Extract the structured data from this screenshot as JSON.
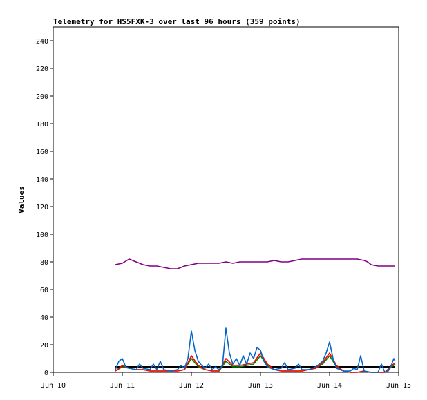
{
  "chart_data": {
    "type": "line",
    "title": "Telemetry for HS5FXK-3 over last 96 hours (359 points)",
    "xlabel": "",
    "ylabel": "Values",
    "xlim": [
      "Jun 10",
      "Jun 15"
    ],
    "ylim": [
      0,
      250
    ],
    "x_ticks": [
      "Jun 10",
      "Jun 11",
      "Jun 12",
      "Jun 13",
      "Jun 14",
      "Jun 15"
    ],
    "y_ticks": [
      0,
      20,
      40,
      60,
      80,
      100,
      120,
      140,
      160,
      180,
      200,
      220,
      240
    ],
    "grid": false,
    "legend": "none",
    "x_units": "days since Jun 10",
    "series": [
      {
        "color": "#800080",
        "points": [
          [
            0.9,
            78
          ],
          [
            1.0,
            79
          ],
          [
            1.1,
            82
          ],
          [
            1.2,
            80
          ],
          [
            1.3,
            78
          ],
          [
            1.4,
            77
          ],
          [
            1.5,
            77
          ],
          [
            1.6,
            76
          ],
          [
            1.7,
            75
          ],
          [
            1.8,
            75
          ],
          [
            1.9,
            77
          ],
          [
            2.0,
            78
          ],
          [
            2.1,
            79
          ],
          [
            2.2,
            79
          ],
          [
            2.3,
            79
          ],
          [
            2.4,
            79
          ],
          [
            2.5,
            80
          ],
          [
            2.6,
            79
          ],
          [
            2.7,
            80
          ],
          [
            2.8,
            80
          ],
          [
            2.9,
            80
          ],
          [
            3.0,
            80
          ],
          [
            3.1,
            80
          ],
          [
            3.2,
            81
          ],
          [
            3.3,
            80
          ],
          [
            3.4,
            80
          ],
          [
            3.5,
            81
          ],
          [
            3.6,
            82
          ],
          [
            3.7,
            82
          ],
          [
            3.8,
            82
          ],
          [
            3.9,
            82
          ],
          [
            4.0,
            82
          ],
          [
            4.1,
            82
          ],
          [
            4.2,
            82
          ],
          [
            4.3,
            82
          ],
          [
            4.4,
            82
          ],
          [
            4.5,
            81
          ],
          [
            4.55,
            80
          ],
          [
            4.6,
            78
          ],
          [
            4.7,
            77
          ],
          [
            4.8,
            77
          ],
          [
            4.9,
            77
          ],
          [
            4.95,
            77
          ]
        ]
      },
      {
        "color": "#000000",
        "points": [
          [
            0.9,
            4
          ],
          [
            4.95,
            4
          ]
        ]
      },
      {
        "color": "#008000",
        "points": [
          [
            0.9,
            1
          ],
          [
            1.0,
            4
          ],
          [
            1.1,
            3
          ],
          [
            1.2,
            2
          ],
          [
            1.3,
            2
          ],
          [
            1.4,
            1
          ],
          [
            1.5,
            1
          ],
          [
            1.6,
            1
          ],
          [
            1.7,
            1
          ],
          [
            1.8,
            1
          ],
          [
            1.9,
            2
          ],
          [
            2.0,
            10
          ],
          [
            2.1,
            4
          ],
          [
            2.2,
            2
          ],
          [
            2.3,
            1
          ],
          [
            2.4,
            1
          ],
          [
            2.5,
            8
          ],
          [
            2.6,
            4
          ],
          [
            2.7,
            4
          ],
          [
            2.8,
            5
          ],
          [
            2.9,
            6
          ],
          [
            3.0,
            12
          ],
          [
            3.1,
            5
          ],
          [
            3.2,
            2
          ],
          [
            3.3,
            1
          ],
          [
            3.4,
            1
          ],
          [
            3.5,
            1
          ],
          [
            3.6,
            1
          ],
          [
            3.7,
            2
          ],
          [
            3.8,
            3
          ],
          [
            3.9,
            6
          ],
          [
            4.0,
            12
          ],
          [
            4.1,
            4
          ],
          [
            4.2,
            1
          ],
          [
            4.3,
            0
          ],
          [
            4.4,
            0
          ],
          [
            4.5,
            1
          ],
          [
            4.6,
            0
          ],
          [
            4.7,
            0
          ],
          [
            4.8,
            0
          ],
          [
            4.9,
            4
          ],
          [
            4.95,
            6
          ]
        ]
      },
      {
        "color": "#ff0000",
        "points": [
          [
            0.9,
            1
          ],
          [
            1.0,
            5
          ],
          [
            1.1,
            3
          ],
          [
            1.2,
            2
          ],
          [
            1.3,
            2
          ],
          [
            1.4,
            1
          ],
          [
            1.5,
            1
          ],
          [
            1.6,
            1
          ],
          [
            1.7,
            1
          ],
          [
            1.8,
            1
          ],
          [
            1.9,
            2
          ],
          [
            2.0,
            12
          ],
          [
            2.1,
            5
          ],
          [
            2.2,
            2
          ],
          [
            2.3,
            1
          ],
          [
            2.4,
            1
          ],
          [
            2.5,
            10
          ],
          [
            2.6,
            5
          ],
          [
            2.7,
            5
          ],
          [
            2.8,
            6
          ],
          [
            2.9,
            7
          ],
          [
            3.0,
            14
          ],
          [
            3.1,
            6
          ],
          [
            3.2,
            2
          ],
          [
            3.3,
            1
          ],
          [
            3.4,
            1
          ],
          [
            3.5,
            1
          ],
          [
            3.6,
            1
          ],
          [
            3.7,
            2
          ],
          [
            3.8,
            3
          ],
          [
            3.9,
            7
          ],
          [
            4.0,
            14
          ],
          [
            4.1,
            5
          ],
          [
            4.2,
            1
          ],
          [
            4.3,
            0
          ],
          [
            4.4,
            0
          ],
          [
            4.5,
            1
          ],
          [
            4.6,
            0
          ],
          [
            4.7,
            0
          ],
          [
            4.8,
            0
          ],
          [
            4.9,
            5
          ],
          [
            4.95,
            7
          ]
        ]
      },
      {
        "color": "#0066cc",
        "points": [
          [
            0.9,
            2
          ],
          [
            0.95,
            8
          ],
          [
            1.0,
            10
          ],
          [
            1.05,
            4
          ],
          [
            1.1,
            3
          ],
          [
            1.2,
            2
          ],
          [
            1.25,
            6
          ],
          [
            1.3,
            3
          ],
          [
            1.4,
            2
          ],
          [
            1.45,
            6
          ],
          [
            1.5,
            2
          ],
          [
            1.55,
            8
          ],
          [
            1.6,
            2
          ],
          [
            1.7,
            1
          ],
          [
            1.8,
            2
          ],
          [
            1.85,
            5
          ],
          [
            1.9,
            3
          ],
          [
            1.95,
            10
          ],
          [
            2.0,
            30
          ],
          [
            2.05,
            16
          ],
          [
            2.1,
            8
          ],
          [
            2.15,
            5
          ],
          [
            2.2,
            3
          ],
          [
            2.25,
            6
          ],
          [
            2.3,
            2
          ],
          [
            2.35,
            4
          ],
          [
            2.4,
            2
          ],
          [
            2.45,
            5
          ],
          [
            2.5,
            32
          ],
          [
            2.55,
            14
          ],
          [
            2.6,
            6
          ],
          [
            2.65,
            10
          ],
          [
            2.7,
            5
          ],
          [
            2.75,
            12
          ],
          [
            2.8,
            6
          ],
          [
            2.85,
            14
          ],
          [
            2.9,
            10
          ],
          [
            2.95,
            18
          ],
          [
            3.0,
            16
          ],
          [
            3.05,
            8
          ],
          [
            3.1,
            4
          ],
          [
            3.15,
            3
          ],
          [
            3.2,
            2
          ],
          [
            3.3,
            3
          ],
          [
            3.35,
            7
          ],
          [
            3.4,
            2
          ],
          [
            3.5,
            3
          ],
          [
            3.55,
            6
          ],
          [
            3.6,
            2
          ],
          [
            3.7,
            2
          ],
          [
            3.8,
            4
          ],
          [
            3.85,
            6
          ],
          [
            3.9,
            8
          ],
          [
            3.95,
            14
          ],
          [
            4.0,
            22
          ],
          [
            4.05,
            10
          ],
          [
            4.1,
            3
          ],
          [
            4.2,
            1
          ],
          [
            4.3,
            1
          ],
          [
            4.35,
            3
          ],
          [
            4.4,
            2
          ],
          [
            4.45,
            12
          ],
          [
            4.5,
            1
          ],
          [
            4.6,
            0
          ],
          [
            4.7,
            0
          ],
          [
            4.75,
            6
          ],
          [
            4.8,
            0
          ],
          [
            4.85,
            1
          ],
          [
            4.9,
            6
          ],
          [
            4.93,
            10
          ],
          [
            4.95,
            8
          ]
        ]
      }
    ]
  }
}
